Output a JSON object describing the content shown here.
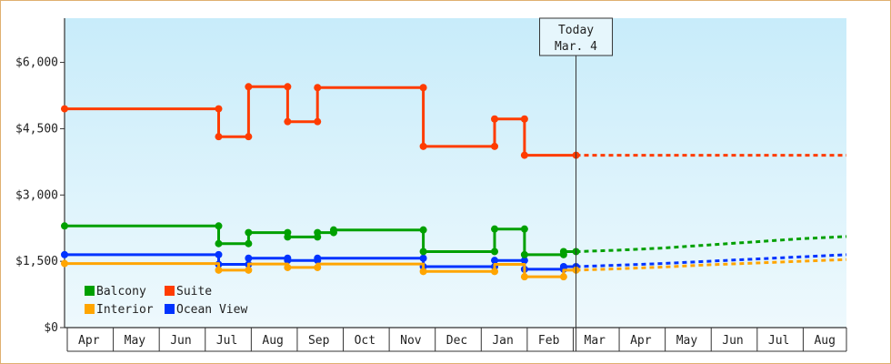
{
  "chart_data": {
    "type": "line",
    "step": true,
    "y_ticks": [
      {
        "value": 0,
        "label": "$0"
      },
      {
        "value": 1500,
        "label": "$1,500"
      },
      {
        "value": 3000,
        "label": "$3,000"
      },
      {
        "value": 4500,
        "label": "$4,500"
      },
      {
        "value": 6000,
        "label": "$6,000"
      }
    ],
    "ylim": [
      0,
      7000
    ],
    "x_categories": [
      "Apr",
      "May",
      "Jun",
      "Jul",
      "Aug",
      "Sep",
      "Oct",
      "Nov",
      "Dec",
      "Jan",
      "Feb",
      "Mar",
      "Apr",
      "May",
      "Jun",
      "Jul",
      "Aug"
    ],
    "xlim": [
      0,
      17
    ],
    "today_marker": {
      "line1": "Today",
      "line2": "Mar. 4",
      "x": 11.12
    },
    "legend_position": "bottom-left",
    "series": [
      {
        "name": "Suite",
        "color": "#ff3c00",
        "points": [
          [
            0,
            4950
          ],
          [
            3.35,
            4950
          ],
          [
            3.35,
            4320
          ],
          [
            4.0,
            4320
          ],
          [
            4.0,
            5450
          ],
          [
            4.85,
            5450
          ],
          [
            4.85,
            4660
          ],
          [
            5.5,
            4660
          ],
          [
            5.5,
            5430
          ],
          [
            7.8,
            5430
          ],
          [
            7.8,
            4100
          ],
          [
            9.35,
            4100
          ],
          [
            9.35,
            4720
          ],
          [
            10.0,
            4720
          ],
          [
            10.0,
            3900
          ],
          [
            11.12,
            3900
          ]
        ],
        "markers": [
          [
            0,
            4950
          ],
          [
            3.35,
            4950
          ],
          [
            3.35,
            4320
          ],
          [
            4.0,
            4320
          ],
          [
            4.0,
            5450
          ],
          [
            4.85,
            5450
          ],
          [
            4.85,
            4660
          ],
          [
            5.5,
            4660
          ],
          [
            5.5,
            5430
          ],
          [
            7.8,
            5430
          ],
          [
            7.8,
            4100
          ],
          [
            9.35,
            4100
          ],
          [
            9.35,
            4720
          ],
          [
            10.0,
            4720
          ],
          [
            10.0,
            3900
          ],
          [
            11.12,
            3900
          ]
        ],
        "forecast": [
          [
            11.12,
            3900
          ],
          [
            17,
            3900
          ]
        ]
      },
      {
        "name": "Balcony",
        "color": "#00a000",
        "points": [
          [
            0,
            2300
          ],
          [
            3.35,
            2300
          ],
          [
            3.35,
            1900
          ],
          [
            4.0,
            1900
          ],
          [
            4.0,
            2150
          ],
          [
            4.85,
            2150
          ],
          [
            4.85,
            2050
          ],
          [
            5.5,
            2050
          ],
          [
            5.5,
            2150
          ],
          [
            5.85,
            2150
          ],
          [
            5.85,
            2210
          ],
          [
            7.8,
            2210
          ],
          [
            7.8,
            1720
          ],
          [
            9.35,
            1720
          ],
          [
            9.35,
            2230
          ],
          [
            10.0,
            2230
          ],
          [
            10.0,
            1650
          ],
          [
            10.85,
            1650
          ],
          [
            10.85,
            1720
          ],
          [
            11.12,
            1720
          ]
        ],
        "markers": [
          [
            0,
            2300
          ],
          [
            3.35,
            2300
          ],
          [
            3.35,
            1900
          ],
          [
            4.0,
            1900
          ],
          [
            4.0,
            2150
          ],
          [
            4.85,
            2150
          ],
          [
            4.85,
            2050
          ],
          [
            5.5,
            2050
          ],
          [
            5.5,
            2150
          ],
          [
            5.85,
            2150
          ],
          [
            5.85,
            2210
          ],
          [
            7.8,
            2210
          ],
          [
            7.8,
            1720
          ],
          [
            9.35,
            1720
          ],
          [
            9.35,
            2230
          ],
          [
            10.0,
            2230
          ],
          [
            10.0,
            1650
          ],
          [
            10.85,
            1650
          ],
          [
            10.85,
            1720
          ],
          [
            11.12,
            1720
          ]
        ],
        "forecast": [
          [
            11.12,
            1720
          ],
          [
            12,
            1750
          ],
          [
            13,
            1800
          ],
          [
            14,
            1870
          ],
          [
            15,
            1940
          ],
          [
            16,
            2010
          ],
          [
            17,
            2060
          ]
        ]
      },
      {
        "name": "Ocean View",
        "color": "#0033ff",
        "points": [
          [
            0,
            1650
          ],
          [
            3.35,
            1650
          ],
          [
            3.35,
            1430
          ],
          [
            4.0,
            1430
          ],
          [
            4.0,
            1570
          ],
          [
            4.85,
            1570
          ],
          [
            4.85,
            1520
          ],
          [
            5.5,
            1520
          ],
          [
            5.5,
            1570
          ],
          [
            7.8,
            1570
          ],
          [
            7.8,
            1380
          ],
          [
            9.35,
            1380
          ],
          [
            9.35,
            1520
          ],
          [
            10.0,
            1520
          ],
          [
            10.0,
            1320
          ],
          [
            10.85,
            1320
          ],
          [
            10.85,
            1380
          ],
          [
            11.12,
            1380
          ]
        ],
        "markers": [
          [
            0,
            1650
          ],
          [
            3.35,
            1650
          ],
          [
            3.35,
            1430
          ],
          [
            4.0,
            1430
          ],
          [
            4.0,
            1570
          ],
          [
            4.85,
            1570
          ],
          [
            4.85,
            1520
          ],
          [
            5.5,
            1520
          ],
          [
            5.5,
            1570
          ],
          [
            7.8,
            1570
          ],
          [
            7.8,
            1380
          ],
          [
            9.35,
            1380
          ],
          [
            9.35,
            1520
          ],
          [
            10.0,
            1520
          ],
          [
            10.0,
            1320
          ],
          [
            10.85,
            1320
          ],
          [
            10.85,
            1380
          ],
          [
            11.12,
            1380
          ]
        ],
        "forecast": [
          [
            11.12,
            1380
          ],
          [
            12,
            1410
          ],
          [
            13,
            1450
          ],
          [
            14,
            1500
          ],
          [
            15,
            1550
          ],
          [
            16,
            1600
          ],
          [
            17,
            1650
          ]
        ]
      },
      {
        "name": "Interior",
        "color": "#ffa500",
        "points": [
          [
            0,
            1450
          ],
          [
            3.35,
            1450
          ],
          [
            3.35,
            1300
          ],
          [
            4.0,
            1300
          ],
          [
            4.0,
            1440
          ],
          [
            4.85,
            1440
          ],
          [
            4.85,
            1360
          ],
          [
            5.5,
            1360
          ],
          [
            5.5,
            1440
          ],
          [
            7.8,
            1440
          ],
          [
            7.8,
            1270
          ],
          [
            9.35,
            1270
          ],
          [
            9.35,
            1430
          ],
          [
            10.0,
            1430
          ],
          [
            10.0,
            1150
          ],
          [
            10.85,
            1150
          ],
          [
            10.85,
            1300
          ],
          [
            11.12,
            1300
          ]
        ],
        "markers": [
          [
            0,
            1450
          ],
          [
            3.35,
            1300
          ],
          [
            4.0,
            1300
          ],
          [
            4.85,
            1360
          ],
          [
            5.5,
            1360
          ],
          [
            7.8,
            1270
          ],
          [
            9.35,
            1270
          ],
          [
            10.0,
            1150
          ],
          [
            10.85,
            1150
          ],
          [
            11.12,
            1300
          ]
        ],
        "forecast": [
          [
            11.12,
            1300
          ],
          [
            12,
            1330
          ],
          [
            13,
            1370
          ],
          [
            14,
            1420
          ],
          [
            15,
            1460
          ],
          [
            16,
            1500
          ],
          [
            17,
            1540
          ]
        ]
      }
    ],
    "legend": [
      {
        "label": "Balcony",
        "color": "#00a000"
      },
      {
        "label": "Suite",
        "color": "#ff3c00"
      },
      {
        "label": "Interior",
        "color": "#ffa500"
      },
      {
        "label": "Ocean View",
        "color": "#0033ff"
      }
    ],
    "background_gradient": [
      "#c8ecfa",
      "#eef9fd"
    ]
  }
}
